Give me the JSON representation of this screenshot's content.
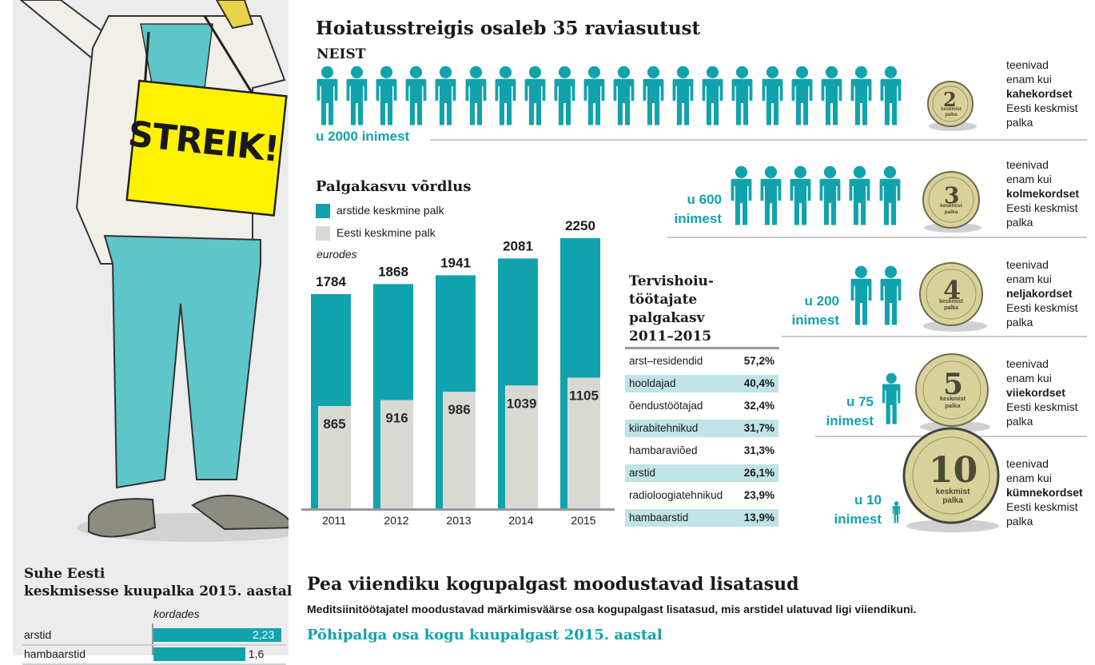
{
  "headline": "Hoiatusstreigis osaleb 35 raviasutust",
  "neist": "NEIST",
  "sign_text": "STREIK!",
  "colors": {
    "teal": "#11a3ad",
    "grey_bar": "#d9d9d4",
    "light_teal_row": "#bfe3e6",
    "coin_gold": "#d8d29a"
  },
  "groups": [
    {
      "count_label": "u 2000 inimest",
      "people_icons": 20,
      "coin_number": "2",
      "coin_sub": "keskmist palka",
      "text_line1": "teenivad",
      "text_line2": "enam kui",
      "text_bold": "kahekordset",
      "text_line4": "Eesti keskmist",
      "text_line5": "palka"
    },
    {
      "count_label_1": "u 600",
      "count_label_2": "inimest",
      "people_icons": 6,
      "coin_number": "3",
      "coin_sub": "keskmist palka",
      "text_line1": "teenivad",
      "text_line2": "enam kui",
      "text_bold": "kolmekordset",
      "text_line4": "Eesti keskmist",
      "text_line5": "palka"
    },
    {
      "count_label_1": "u 200",
      "count_label_2": "inimest",
      "people_icons": 2,
      "coin_number": "4",
      "coin_sub": "keskmist palka",
      "text_line1": "teenivad",
      "text_line2": "enam kui",
      "text_bold": "neljakordset",
      "text_line4": "Eesti keskmist",
      "text_line5": "palka"
    },
    {
      "count_label_1": "u 75",
      "count_label_2": "inimest",
      "people_icons": 1,
      "coin_number": "5",
      "coin_sub": "keskmist palka",
      "text_line1": "teenivad",
      "text_line2": "enam kui",
      "text_bold": "viiekordset",
      "text_line4": "Eesti keskmist",
      "text_line5": "palka"
    },
    {
      "count_label_1": "u 10",
      "count_label_2": "inimest",
      "people_icons": 1,
      "coin_number": "10",
      "coin_sub": "keskmist palka",
      "text_line1": "teenivad",
      "text_line2": "enam kui",
      "text_bold": "kümnekordset",
      "text_line4": "Eesti keskmist",
      "text_line5": "palka"
    }
  ],
  "chart_data": [
    {
      "type": "bar",
      "title": "Palgakasvu võrdlus",
      "unit_note": "eurodes",
      "categories": [
        "2011",
        "2012",
        "2013",
        "2014",
        "2015"
      ],
      "series": [
        {
          "name": "arstide keskmine palk",
          "values": [
            1784,
            1868,
            1941,
            2081,
            2250
          ]
        },
        {
          "name": "Eesti keskmine palk",
          "values": [
            865,
            916,
            986,
            1039,
            1105
          ]
        }
      ],
      "ylim": [
        0,
        2400
      ]
    },
    {
      "type": "table",
      "title_lines": [
        "Tervishoiu-",
        "töötajate",
        "palgakasv",
        "2011–2015"
      ],
      "rows": [
        {
          "label": "arst–residendid",
          "value": "57,2%"
        },
        {
          "label": "hooldajad",
          "value": "40,4%"
        },
        {
          "label": "õendustöötajad",
          "value": "32,4%"
        },
        {
          "label": "kiirabitehnikud",
          "value": "31,7%"
        },
        {
          "label": "hambaraviõed",
          "value": "31,3%"
        },
        {
          "label": "arstid",
          "value": "26,1%"
        },
        {
          "label": "radioloogiatehnikud",
          "value": "23,9%"
        },
        {
          "label": "hambaarstid",
          "value": "13,9%"
        }
      ]
    },
    {
      "type": "bar",
      "title_lines": [
        "Suhe Eesti",
        "keskmisesse kuupalka 2015. aastal"
      ],
      "unit_note": "kordades",
      "categories": [
        "arstid",
        "hambaarstid"
      ],
      "values": [
        2.23,
        1.6
      ],
      "value_labels": [
        "2,23",
        "1,6"
      ],
      "xlim": [
        0,
        2.23
      ]
    }
  ],
  "bottom": {
    "title": "Pea viiendiku kogupalgast moodustavad lisatasud",
    "subtitle": "Meditsiinitöötajatel moodustavad märkimisväärse osa kogupalgast lisatasud, mis arstidel ulatuvad ligi viiendikuni.",
    "section": "Põhipalga osa kogu kuupalgast 2015. aastal"
  }
}
